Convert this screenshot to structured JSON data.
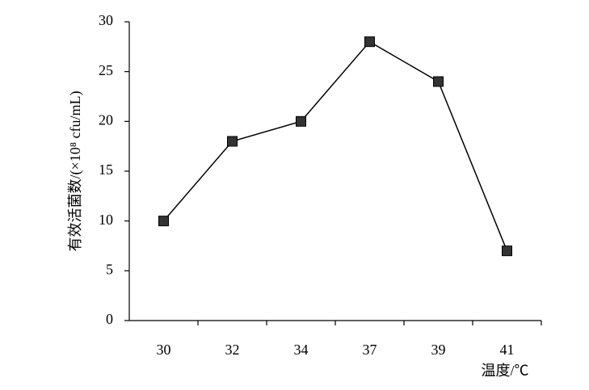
{
  "chart_data": {
    "type": "line",
    "y_label": "有效活菌数/(×10⁸ cfu/mL)",
    "x_label": "温度/℃",
    "categories": [
      "30",
      "32",
      "34",
      "37",
      "39",
      "41"
    ],
    "values": [
      10,
      18,
      20,
      28,
      24,
      7
    ],
    "color": "#000000",
    "marker_color": "#333333",
    "ylim": [
      0,
      30
    ],
    "yticks": [
      0,
      5,
      10,
      15,
      20,
      25,
      30
    ]
  }
}
